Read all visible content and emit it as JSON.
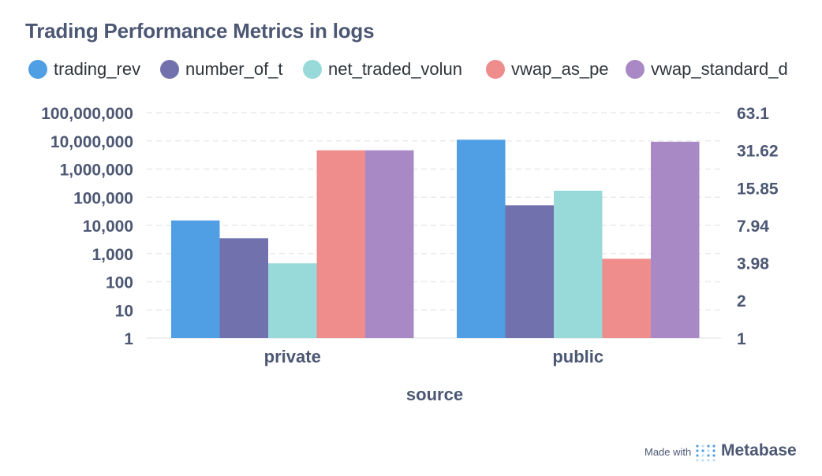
{
  "header": {
    "title": "Trading Performance Metrics in logs"
  },
  "legend": [
    {
      "label": "trading_rev",
      "color": "#509ee3"
    },
    {
      "label": "number_of_t",
      "color": "#7172ad"
    },
    {
      "label": "net_traded_volun",
      "color": "#98d9d9"
    },
    {
      "label": "vwap_as_pe",
      "color": "#ef8c8c"
    },
    {
      "label": "vwap_standard_d",
      "color": "#a989c5"
    }
  ],
  "chart_data": {
    "type": "bar",
    "title": "Trading Performance Metrics in logs",
    "xlabel": "source",
    "categories": [
      "private",
      "public"
    ],
    "y_left": {
      "scale": "log",
      "ticks": [
        "1",
        "10",
        "100",
        "1,000",
        "10,000",
        "100,000",
        "1,000,000",
        "10,000,000",
        "100,000,000"
      ],
      "range": [
        1,
        100000000
      ]
    },
    "y_right": {
      "scale": "log",
      "ticks": [
        "1",
        "2",
        "3.98",
        "7.94",
        "15.85",
        "31.62",
        "63.1"
      ],
      "range": [
        1,
        63.1
      ]
    },
    "series": [
      {
        "name": "trading_rev",
        "axis": "left",
        "color": "#509ee3",
        "values": [
          15000,
          11000000
        ]
      },
      {
        "name": "number_of_t",
        "axis": "left",
        "color": "#7172ad",
        "values": [
          3500,
          52000
        ]
      },
      {
        "name": "net_traded_volun",
        "axis": "left",
        "color": "#98d9d9",
        "values": [
          450,
          170000
        ]
      },
      {
        "name": "vwap_as_pe",
        "axis": "right",
        "color": "#ef8c8c",
        "values": [
          31.6,
          4.3
        ]
      },
      {
        "name": "vwap_standard_d",
        "axis": "right",
        "color": "#a989c5",
        "values": [
          31.6,
          37
        ]
      }
    ],
    "grid": true,
    "legend_position": "top"
  },
  "footer": {
    "made_with": "Made with",
    "brand": "Metabase"
  }
}
